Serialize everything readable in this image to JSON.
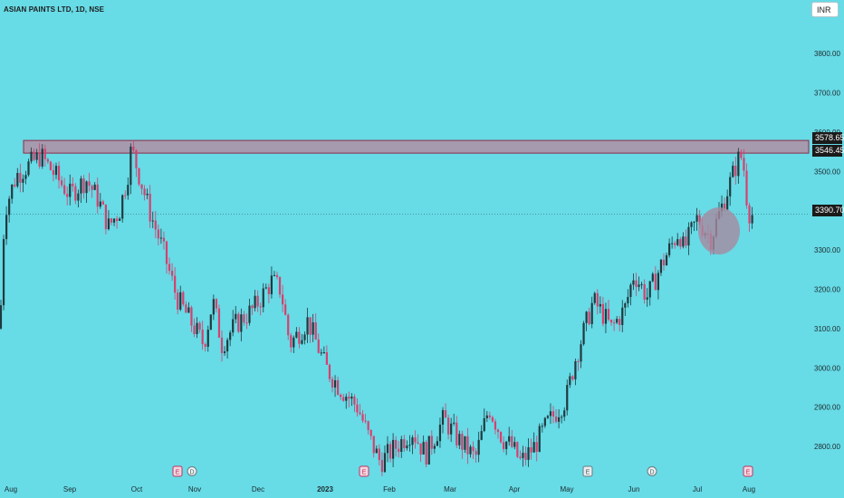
{
  "header": {
    "symbol_line": "ASIAN PAINTS LTD, 1D, NSE"
  },
  "currency": "INR",
  "price_labels": {
    "upper_zone": "3578.65",
    "lower_zone": "3546.45",
    "last": "3390.70"
  },
  "event_markers": [
    {
      "label": "E",
      "month_pos": "Oct",
      "kind": "earnings"
    },
    {
      "label": "D",
      "month_pos": "Oct",
      "kind": "dividend"
    },
    {
      "label": "E",
      "month_pos": "Jan",
      "kind": "earnings"
    },
    {
      "label": "E",
      "month_pos": "May",
      "kind": "earnings"
    },
    {
      "label": "D",
      "month_pos": "Jun",
      "kind": "dividend"
    },
    {
      "label": "E",
      "month_pos": "Jul",
      "kind": "earnings"
    }
  ],
  "colors": {
    "background": "#67dbe6",
    "up": "#1f3a3f",
    "down": "#d6406e",
    "zone_fill": "#b08ea3",
    "zone_border": "#8e2a4a"
  },
  "chart_data": {
    "type": "candlestick",
    "title": "ASIAN PAINTS LTD, 1D, NSE",
    "currency": "INR",
    "x_tick_labels": [
      "Aug",
      "Sep",
      "Oct",
      "Nov",
      "Dec",
      "2023",
      "Feb",
      "Mar",
      "Apr",
      "May",
      "Jun",
      "Jul",
      "Aug"
    ],
    "y_tick_labels": [
      "3800.00",
      "3700.00",
      "3600.00",
      "3500.00",
      "3400.00",
      "3300.00",
      "3200.00",
      "3100.00",
      "3000.00",
      "2900.00",
      "2800.00"
    ],
    "ylim": [
      2715,
      3913
    ],
    "resistance_zone": [
      3546.45,
      3578.65
    ],
    "last_price": 3390.7,
    "highlight_circle": {
      "date": "Jul",
      "price_center": 3335
    },
    "close_path": [
      [
        "Aug",
        3100
      ],
      [
        "Aug",
        3400
      ],
      [
        "Aug",
        3490
      ],
      [
        "Aug",
        3540
      ],
      [
        "Sep",
        3440
      ],
      [
        "Sep",
        3480
      ],
      [
        "Sep",
        3430
      ],
      [
        "Sep",
        3360
      ],
      [
        "Sep",
        3400
      ],
      [
        "Sep",
        3490
      ],
      [
        "Oct",
        3560
      ],
      [
        "Oct",
        3400
      ],
      [
        "Oct",
        3300
      ],
      [
        "Nov",
        3180
      ],
      [
        "Nov",
        3120
      ],
      [
        "Nov",
        3060
      ],
      [
        "Nov",
        3170
      ],
      [
        "Nov",
        3060
      ],
      [
        "Nov",
        3110
      ],
      [
        "Dec",
        3150
      ],
      [
        "Dec",
        3220
      ],
      [
        "Dec",
        3200
      ],
      [
        "Dec",
        3060
      ],
      [
        "Dec",
        3120
      ],
      [
        "2023",
        3000
      ],
      [
        "2023",
        2950
      ],
      [
        "2023",
        2900
      ],
      [
        "2023",
        2820
      ],
      [
        "Feb",
        2760
      ],
      [
        "Feb",
        2840
      ],
      [
        "Feb",
        2780
      ],
      [
        "Feb",
        2870
      ],
      [
        "Mar",
        2820
      ],
      [
        "Mar",
        2770
      ],
      [
        "Mar",
        2900
      ],
      [
        "Mar",
        2820
      ],
      [
        "Apr",
        2800
      ],
      [
        "Apr",
        2760
      ],
      [
        "Apr",
        2800
      ],
      [
        "Apr",
        2860
      ],
      [
        "Apr",
        2920
      ],
      [
        "May",
        3020
      ],
      [
        "May",
        3170
      ],
      [
        "May",
        3140
      ],
      [
        "May",
        3100
      ],
      [
        "Jun",
        3150
      ],
      [
        "Jun",
        3240
      ],
      [
        "Jun",
        3180
      ],
      [
        "Jun",
        3260
      ],
      [
        "Jun",
        3350
      ],
      [
        "Jul",
        3300
      ],
      [
        "Jul",
        3380
      ],
      [
        "Jul",
        3330
      ],
      [
        "Jul",
        3430
      ],
      [
        "Jul",
        3530
      ],
      [
        "Jul",
        3540
      ],
      [
        "Aug",
        3400
      ],
      [
        "Aug",
        3385
      ]
    ]
  }
}
